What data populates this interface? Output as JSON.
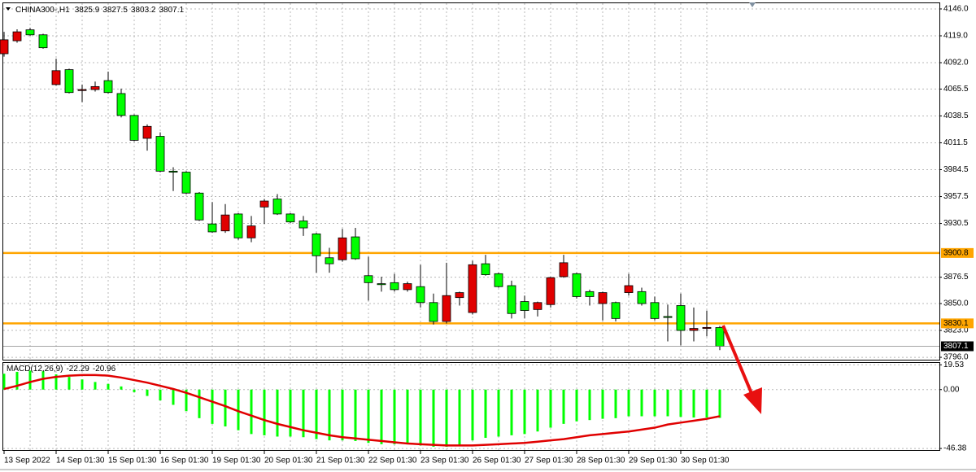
{
  "chart_data": [
    {
      "type": "candlestick",
      "title": "CHINA300-,H1",
      "categories": [
        "13 Sep 2022",
        null,
        null,
        null,
        "14 Sep 01:30",
        null,
        null,
        null,
        "15 Sep 01:30",
        null,
        null,
        null,
        "16 Sep 01:30",
        null,
        null,
        null,
        "19 Sep 01:30",
        null,
        null,
        null,
        "20 Sep 01:30",
        null,
        null,
        null,
        "21 Sep 01:30",
        null,
        null,
        null,
        "22 Sep 01:30",
        null,
        null,
        null,
        "23 Sep 01:30",
        null,
        null,
        null,
        "26 Sep 01:30",
        null,
        null,
        null,
        "27 Sep 01:30",
        null,
        null,
        null,
        "28 Sep 01:30",
        null,
        null,
        null,
        "29 Sep 01:30",
        null,
        null,
        null,
        "30 Sep 01:30",
        null,
        null,
        null
      ],
      "open": [
        4101,
        4114,
        4125,
        4120,
        4070,
        4085,
        4064,
        4065,
        4074,
        4061,
        4039,
        4016,
        4018,
        3983,
        3982,
        3961,
        3930,
        3923,
        3940,
        3916,
        3947,
        3955,
        3940,
        3933,
        3920,
        3896,
        3894,
        3917,
        3878,
        3870,
        3871,
        3864,
        3867,
        3851,
        3832,
        3856,
        3841,
        3890,
        3880,
        3868,
        3852,
        3844,
        3849,
        3877,
        3880,
        3862,
        3850,
        3851,
        3861,
        3862,
        3851,
        3837,
        3848,
        3823,
        3825,
        3825.9
      ],
      "high": [
        4123,
        4125.5,
        4127,
        4121,
        4096,
        4086,
        4070,
        4073,
        4083,
        4066,
        4040,
        4030,
        4022,
        3987,
        3983,
        3962,
        3952,
        3950,
        3941,
        3938,
        3955,
        3960,
        3941,
        3938,
        3921,
        3906,
        3925,
        3926,
        3897,
        3877,
        3880,
        3872,
        3889,
        3860,
        3891,
        3862,
        3893,
        3899,
        3881,
        3873,
        3858,
        3852,
        3877,
        3899,
        3881,
        3864,
        3862,
        3852,
        3880,
        3866,
        3857,
        3849,
        3860,
        3846,
        3843,
        3827.5
      ],
      "low": [
        4098,
        4112,
        4119,
        4106,
        4069,
        4061,
        4052.4,
        4063,
        4061,
        4037,
        4013,
        4003.6,
        3982,
        3963,
        3960,
        3933,
        3921,
        3921,
        3914,
        3911.6,
        3930,
        3939,
        3931,
        3918,
        3881,
        3881,
        3892,
        3894,
        3853,
        3862,
        3862,
        3862,
        3846,
        3829,
        3830,
        3848,
        3839,
        3878,
        3866,
        3835,
        3835,
        3837,
        3846,
        3876,
        3855,
        3848,
        3833,
        3832,
        3858,
        3848,
        3833,
        3812,
        3808,
        3812,
        3817,
        3803.2
      ],
      "close": [
        4115,
        4123,
        4120,
        4107,
        4084,
        4062,
        4065,
        4068,
        4062,
        4039,
        4014,
        4028,
        3983,
        3982,
        3961,
        3934,
        3922,
        3939,
        3916,
        3928,
        3953,
        3940,
        3932,
        3926,
        3898,
        3890,
        3916,
        3895,
        3871,
        3869,
        3864,
        3870,
        3851,
        3832,
        3858,
        3861,
        3889,
        3879,
        3867,
        3840,
        3843,
        3851,
        3876,
        3891,
        3857,
        3857,
        3861,
        3835,
        3868,
        3850,
        3835,
        3836,
        3823,
        3825,
        3826,
        3807.1
      ],
      "up_color": "#e00000",
      "down_color": "#00ff00",
      "ylim": [
        3793.6,
        4151.7
      ],
      "yticks": [
        {
          "value": 4146,
          "label": "4146.0"
        },
        {
          "value": 4119,
          "label": "4119.0"
        },
        {
          "value": 4092,
          "label": "4092.0"
        },
        4065.5,
        4038.5,
        4011.5,
        3984.5,
        3957.5,
        3930.5,
        3876.5,
        {
          "value": 3850,
          "label": "3850.0"
        },
        {
          "value": 3823,
          "label": "3823.0"
        },
        {
          "value": 3796,
          "label": "3796.0"
        }
      ],
      "hlines": [
        {
          "value": 3900.8,
          "color": "#ffa500"
        },
        {
          "value": 3830.1,
          "color": "#ffa500"
        }
      ],
      "grid": true
    },
    {
      "type": "macd",
      "title": "MACD(12,26,9)",
      "values": [
        12.5,
        14,
        15,
        14.5,
        12,
        10,
        8,
        6,
        4.5,
        2.5,
        -2,
        -5,
        -8.5,
        -12,
        -17,
        -22.5,
        -27,
        -29,
        -32,
        -35,
        -36,
        -37,
        -37,
        -37.5,
        -39,
        -40,
        -40,
        -40.5,
        -42,
        -43,
        -43,
        -43,
        -44,
        -45,
        -45,
        -44,
        -40,
        -38,
        -37,
        -36,
        -35,
        -33,
        -30,
        -27,
        -25,
        -24,
        -23,
        -22.5,
        -21,
        -21,
        -21,
        -21,
        -21.5,
        -22,
        -22,
        -22.29
      ],
      "signal": [
        0.5,
        3,
        6,
        8.5,
        10,
        11,
        11.5,
        11.5,
        11,
        9.5,
        7.5,
        5.5,
        3,
        0.5,
        -2.5,
        -6,
        -9.5,
        -13,
        -17,
        -20.5,
        -24,
        -27,
        -29.5,
        -32,
        -34,
        -36,
        -37.5,
        -38.5,
        -39.5,
        -40.5,
        -41.5,
        -42.5,
        -43,
        -43.5,
        -44,
        -44,
        -44,
        -43.5,
        -43,
        -42.5,
        -42,
        -41,
        -40,
        -39,
        -37.5,
        -36,
        -35,
        -34,
        -33,
        -31.5,
        -30,
        -27.5,
        -26,
        -24.5,
        -23,
        -20.96
      ],
      "bar_color": "#00ff00",
      "signal_color": "#e00000",
      "ylim": [
        -47.6,
        21
      ],
      "yticks": [
        19.53,
        {
          "value": 0,
          "label": "0.00"
        },
        -46.38
      ],
      "grid": true
    }
  ]
}
